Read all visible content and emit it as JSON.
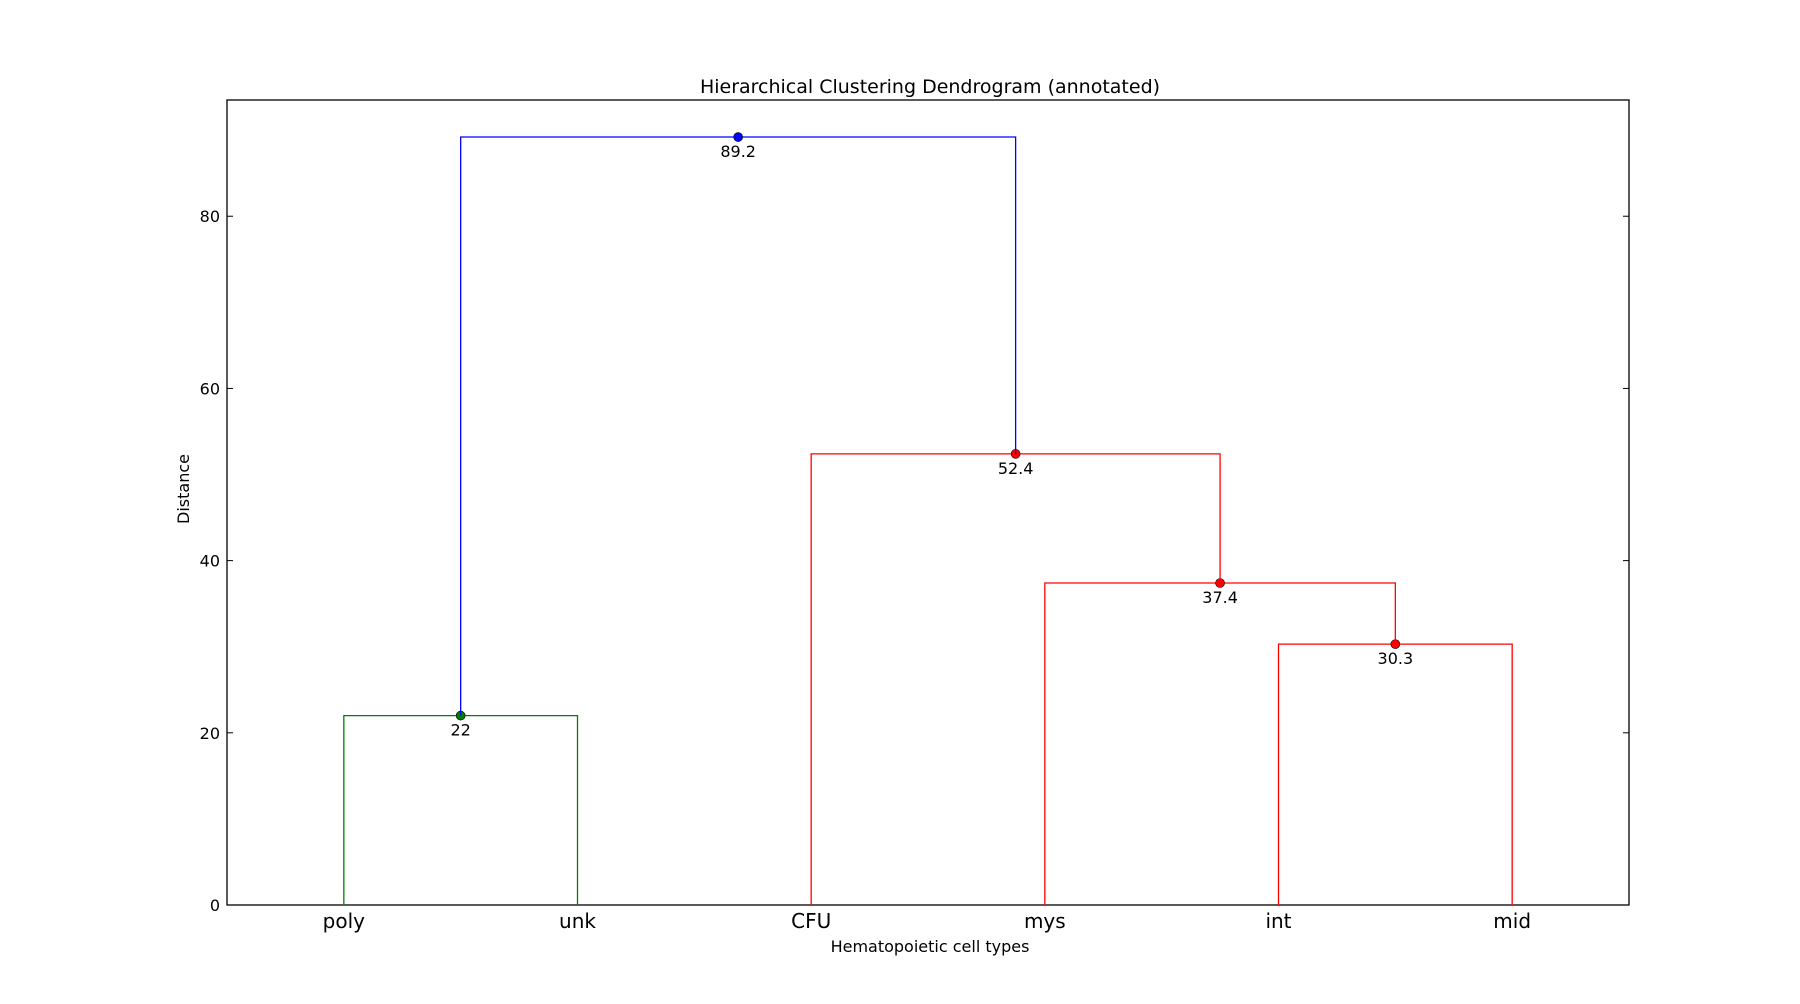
{
  "chart_data": {
    "type": "dendrogram",
    "title": "Hierarchical Clustering Dendrogram (annotated)",
    "xlabel": "Hematopoietic cell types",
    "ylabel": "Distance",
    "ylim": [
      0,
      93.5
    ],
    "yticks": [
      0,
      20,
      40,
      60,
      80
    ],
    "grid": false,
    "leaves": [
      "poly",
      "unk",
      "CFU",
      "mys",
      "int",
      "mid"
    ],
    "merges": [
      {
        "left": "poly",
        "right": "unk",
        "height": 22,
        "label": "22",
        "color": "#008000"
      },
      {
        "left": "int",
        "right": "mid",
        "height": 30.3,
        "label": "30.3",
        "color": "#ff0000"
      },
      {
        "left": "mys",
        "right": "int+mid",
        "height": 37.4,
        "label": "37.4",
        "color": "#ff0000"
      },
      {
        "left": "CFU",
        "right": "mys+int+mid",
        "height": 52.4,
        "label": "52.4",
        "color": "#ff0000"
      },
      {
        "left": "poly+unk",
        "right": "CFU+mys+int+mid",
        "height": 89.2,
        "label": "89.2",
        "color": "#0000ff"
      }
    ]
  }
}
